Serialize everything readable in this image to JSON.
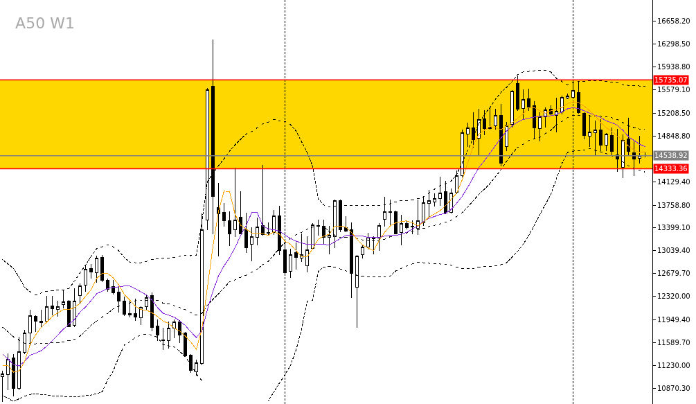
{
  "chart_data": {
    "type": "candlestick",
    "title": "A50 W1",
    "categories": [
      null,
      null,
      null,
      null,
      null,
      null,
      null,
      null,
      null,
      null,
      null,
      null,
      null,
      null,
      null,
      null,
      null,
      null,
      null,
      null,
      null,
      null,
      null,
      null,
      null,
      null,
      null,
      null,
      null,
      null,
      null,
      null,
      null,
      null,
      null,
      null,
      null,
      null,
      null,
      null,
      null,
      null,
      null,
      null,
      null,
      null,
      null,
      null,
      null,
      null,
      null,
      null,
      null,
      null,
      null,
      null,
      null,
      null,
      null,
      null,
      null,
      null,
      null,
      null,
      null,
      null,
      null,
      null,
      null,
      null,
      null,
      null,
      null,
      null,
      null,
      null,
      null,
      null,
      null,
      null,
      null,
      null,
      null,
      null,
      null,
      null,
      null,
      null,
      null,
      null,
      null,
      null,
      null,
      null,
      null,
      null,
      null,
      null,
      null,
      null,
      null,
      null,
      null,
      null,
      null,
      null,
      null,
      null,
      null,
      null,
      null,
      null,
      null,
      null,
      null,
      null,
      null
    ],
    "ohlc": [
      [
        11046,
        11144,
        10652,
        11100
      ],
      [
        11079,
        11407,
        10838,
        11320
      ],
      [
        11352,
        11396,
        10750,
        10860
      ],
      [
        10860,
        11680,
        10838,
        11440
      ],
      [
        11429,
        11779,
        11410,
        11735
      ],
      [
        11735,
        12096,
        11560,
        12019
      ],
      [
        11998,
        12019,
        11757,
        11921
      ],
      [
        11921,
        12096,
        11823,
        11905
      ],
      [
        11921,
        12315,
        11910,
        12151
      ],
      [
        12162,
        12315,
        12030,
        12118
      ],
      [
        12107,
        12249,
        12008,
        12151
      ],
      [
        12184,
        12424,
        12129,
        12238
      ],
      [
        12249,
        12260,
        11844,
        11844
      ],
      [
        11866,
        12446,
        11844,
        12249
      ],
      [
        12326,
        12512,
        12205,
        12479
      ],
      [
        12490,
        12807,
        12402,
        12752
      ],
      [
        12763,
        12818,
        12610,
        12698
      ],
      [
        12687,
        12950,
        12534,
        12917
      ],
      [
        12928,
        12971,
        12545,
        12577
      ],
      [
        12577,
        12590,
        12402,
        12435
      ],
      [
        12468,
        12577,
        12358,
        12380
      ],
      [
        12391,
        12457,
        12074,
        12249
      ],
      [
        12249,
        12304,
        12019,
        12041
      ],
      [
        12052,
        12249,
        11987,
        12030
      ],
      [
        12052,
        12271,
        11932,
        11987
      ],
      [
        11976,
        12151,
        11877,
        12140
      ],
      [
        12151,
        12337,
        12107,
        12293
      ],
      [
        12326,
        12370,
        11768,
        11833
      ],
      [
        11855,
        11943,
        11615,
        11713
      ],
      [
        11626,
        11812,
        11483,
        11615
      ],
      [
        11615,
        11910,
        11505,
        11812
      ],
      [
        11812,
        11943,
        11669,
        11910
      ],
      [
        11910,
        11932,
        11582,
        11713
      ],
      [
        11735,
        11746,
        11363,
        11374
      ],
      [
        11385,
        11396,
        11122,
        11155
      ],
      [
        11133,
        11319,
        11068,
        11265
      ],
      [
        11254,
        13617,
        11232,
        13365
      ],
      [
        13529,
        15597,
        13365,
        15575
      ],
      [
        15630,
        16363,
        13310,
        13901
      ],
      [
        13726,
        14098,
        12950,
        13617
      ],
      [
        13639,
        13781,
        13420,
        13518
      ],
      [
        13518,
        13660,
        13114,
        13310
      ],
      [
        13365,
        14339,
        13256,
        13529
      ],
      [
        13562,
        13967,
        13300,
        13310
      ],
      [
        13365,
        13628,
        13004,
        13081
      ],
      [
        13146,
        13398,
        12873,
        13256
      ],
      [
        13245,
        13551,
        13135,
        13409
      ],
      [
        13431,
        14393,
        13288,
        13299
      ],
      [
        13332,
        13475,
        13299,
        13321
      ],
      [
        13332,
        13672,
        13299,
        13584
      ],
      [
        13584,
        13737,
        12982,
        13037
      ],
      [
        13048,
        13168,
        12654,
        12687
      ],
      [
        12709,
        13059,
        12621,
        12982
      ],
      [
        13004,
        13168,
        12752,
        12928
      ],
      [
        12917,
        13310,
        12862,
        12982
      ],
      [
        12807,
        13256,
        12698,
        13048
      ],
      [
        13070,
        13464,
        13059,
        13442
      ],
      [
        13431,
        13529,
        13288,
        13425
      ],
      [
        13420,
        13529,
        13146,
        13245
      ],
      [
        13245,
        13420,
        12993,
        13288
      ],
      [
        13256,
        13836,
        13081,
        13825
      ],
      [
        13825,
        13836,
        13343,
        13365
      ],
      [
        13398,
        13573,
        13343,
        13354
      ],
      [
        13365,
        13475,
        12293,
        12676
      ],
      [
        12457,
        12961,
        11823,
        12950
      ],
      [
        12982,
        13124,
        12917,
        13092
      ],
      [
        13092,
        13321,
        13059,
        13245
      ],
      [
        13234,
        13256,
        12993,
        13230
      ],
      [
        13234,
        13464,
        13037,
        13431
      ],
      [
        13540,
        13880,
        13420,
        13650
      ],
      [
        13650,
        13836,
        13442,
        13639
      ],
      [
        13660,
        13665,
        13305,
        13310
      ],
      [
        13332,
        13595,
        13135,
        13464
      ],
      [
        13464,
        13497,
        13376,
        13398
      ],
      [
        13420,
        13508,
        13310,
        13409
      ],
      [
        13387,
        13836,
        13299,
        13508
      ],
      [
        13475,
        13901,
        13431,
        13792
      ],
      [
        13781,
        13989,
        13573,
        13825
      ],
      [
        13803,
        13934,
        13737,
        13858
      ],
      [
        13868,
        14207,
        13748,
        13945
      ],
      [
        13967,
        14131,
        13617,
        13628
      ],
      [
        13639,
        14011,
        13628,
        13945
      ],
      [
        13956,
        14295,
        13934,
        14229
      ],
      [
        14229,
        14951,
        14197,
        14897
      ],
      [
        14875,
        15050,
        14678,
        14984
      ],
      [
        14984,
        15214,
        14667,
        14798
      ],
      [
        14820,
        15269,
        14557,
        15105
      ],
      [
        15116,
        15247,
        14864,
        14973
      ],
      [
        14995,
        15301,
        14962,
        14973
      ],
      [
        15006,
        15279,
        14962,
        15181
      ],
      [
        15181,
        15356,
        14372,
        14426
      ],
      [
        14678,
        15061,
        14623,
        15006
      ],
      [
        15028,
        15564,
        14995,
        15553
      ],
      [
        15674,
        15794,
        15247,
        15279
      ],
      [
        15290,
        15575,
        15105,
        15422
      ],
      [
        15433,
        15586,
        15247,
        15312
      ],
      [
        15334,
        15389,
        14809,
        14984
      ],
      [
        14973,
        15214,
        14776,
        15159
      ],
      [
        15159,
        15301,
        14995,
        15268
      ],
      [
        15279,
        15334,
        15181,
        15192
      ],
      [
        15181,
        15444,
        14918,
        15236
      ],
      [
        15225,
        15487,
        15192,
        15455
      ],
      [
        15444,
        15520,
        15433,
        15487
      ],
      [
        15455,
        15706,
        15444,
        15564
      ],
      [
        15542,
        15706,
        15203,
        15214
      ],
      [
        15203,
        15214,
        14809,
        14853
      ],
      [
        14842,
        15159,
        14678,
        14918
      ],
      [
        14907,
        15083,
        14557,
        14951
      ],
      [
        14951,
        15105,
        14623,
        14710
      ],
      [
        14710,
        14896,
        14623,
        14885
      ],
      [
        14853,
        14984,
        14557,
        14612
      ],
      [
        14547,
        14962,
        14284,
        14481
      ],
      [
        14350,
        14864,
        14186,
        14787
      ],
      [
        14809,
        15137,
        14557,
        14612
      ],
      [
        14590,
        14755,
        14229,
        14481
      ],
      [
        14492,
        14842,
        14426,
        14536
      ],
      [
        14541,
        14580,
        14514,
        14538.92
      ]
    ],
    "colors": [
      "#ffffff",
      "#ffffff",
      "#000000",
      "#ffffff",
      "#ffffff",
      "#ffffff",
      "#000000",
      "#000000",
      "#ffffff",
      "#000000",
      "#ffffff",
      "#ffffff",
      "#000000",
      "#ffffff",
      "#ffffff",
      "#ffffff",
      "#000000",
      "#ffffff",
      "#000000",
      "#000000",
      "#000000",
      "#000000",
      "#000000",
      "#000000",
      "#000000",
      "#ffffff",
      "#ffffff",
      "#000000",
      "#000000",
      "#000000",
      "#ffffff",
      "#ffffff",
      "#000000",
      "#000000",
      "#000000",
      "#ffffff",
      "#ffffff",
      "#ffffff",
      "#000000",
      "#000000",
      "#000000",
      "#000000",
      "#ffffff",
      "#000000",
      "#000000",
      "#ffffff",
      "#ffffff",
      "#000000",
      "#000000",
      "#ffffff",
      "#000000",
      "#000000",
      "#ffffff",
      "#000000",
      "#ffffff",
      "#ffffff",
      "#ffffff",
      "#000000",
      "#000000",
      "#ffffff",
      "#ffffff",
      "#000000",
      "#000000",
      "#000000",
      "#ffffff",
      "#ffffff",
      "#ffffff",
      "#000000",
      "#ffffff",
      "#ffffff",
      "#000000",
      "#000000",
      "#ffffff",
      "#000000",
      "#000000",
      "#ffffff",
      "#ffffff",
      "#ffffff",
      "#ffffff",
      "#ffffff",
      "#000000",
      "#ffffff",
      "#ffffff",
      "#ffffff",
      "#ffffff",
      "#000000",
      "#ffffff",
      "#000000",
      "#000000",
      "#ffffff",
      "#000000",
      "#ffffff",
      "#ffffff",
      "#000000",
      "#ffffff",
      "#000000",
      "#000000",
      "#ffffff",
      "#ffffff",
      "#000000",
      "#ffffff",
      "#ffffff",
      "#ffffff",
      "#ffffff",
      "#000000",
      "#000000",
      "#ffffff",
      "#ffffff",
      "#000000",
      "#ffffff",
      "#000000",
      "#000000",
      "#ffffff",
      "#000000",
      "#000000",
      "#ffffff",
      "#000000"
    ],
    "series": [
      {
        "type": "line",
        "color": "#000000",
        "line_style": "dashed",
        "values": [
          12900,
          12830,
          12760,
          12620,
          12460,
          12390,
          12340,
          12370,
          12400,
          12410,
          12420,
          12420,
          12440,
          12560,
          12690,
          12810,
          12950,
          13070,
          13100,
          13130,
          13100,
          13040,
          12930,
          12860,
          12850,
          12850,
          12870,
          12900,
          12910,
          12920,
          12920,
          12930,
          12950,
          12970,
          12960,
          12970,
          13500,
          14130,
          14260,
          14380,
          14490,
          14610,
          14710,
          14800,
          14880,
          14920,
          14980,
          15040,
          15070,
          15110,
          15090,
          15080,
          15030,
          14930,
          14760,
          14590,
          14370,
          13860,
          13760,
          13730,
          13740,
          13750,
          13750,
          13750,
          13750,
          13750,
          13750,
          13750,
          13750,
          13760,
          13780,
          13810,
          13830,
          13830,
          13840,
          13860,
          13890,
          13950,
          14010,
          14070,
          14100,
          14140,
          14240,
          14430,
          14620,
          14830,
          15050,
          15190,
          15300,
          15430,
          15540,
          15620,
          15710,
          15820,
          15860,
          15870,
          15880,
          15890,
          15890,
          15860,
          15760,
          15710,
          15660,
          15690,
          15710,
          15710,
          15720,
          15720,
          15720,
          15710,
          15700,
          15690,
          15660,
          15650,
          15650,
          15640,
          15640
        ]
      },
      {
        "type": "line",
        "color": "#000000",
        "line_style": "dashed",
        "values": [
          11830,
          11760,
          11680,
          11630,
          11580,
          11570,
          11570,
          11580,
          11580,
          11590,
          11590,
          11600,
          11620,
          11640,
          11690,
          11770,
          11860,
          11930,
          11990,
          12050,
          12120,
          12160,
          12180,
          12220,
          12250,
          12260,
          12260,
          12260,
          12260,
          12210,
          12200,
          12170,
          12140,
          12110,
          12060,
          12020,
          12050,
          12180,
          12270,
          12360,
          12450,
          12550,
          12580,
          12620,
          12650,
          12700,
          12750,
          12820,
          12870,
          12970,
          13080,
          13170,
          13230,
          13290,
          13330,
          13380,
          13410,
          13430,
          13420,
          13340,
          13280,
          13250,
          13250,
          13260,
          13230,
          13210,
          13200,
          13200,
          13200,
          13220,
          13260,
          13280,
          13300,
          13320,
          13340,
          13370,
          13390,
          13420,
          13440,
          13460,
          13490,
          13520,
          13580,
          13640,
          13730,
          13830,
          13930,
          14010,
          14100,
          14210,
          14320,
          14450,
          14570,
          14670,
          14720,
          14780,
          14810,
          14830,
          14890,
          14940,
          15030,
          15080,
          15140,
          15180,
          15180,
          15180,
          15170,
          15170,
          15160,
          15150,
          15140,
          15110,
          15060,
          15010,
          14980,
          14960,
          14950
        ]
      },
      {
        "type": "line",
        "color": "#000000",
        "line_style": "dashed",
        "values": [
          10750,
          10710,
          10660,
          10700,
          10740,
          10770,
          10780,
          10770,
          10760,
          10750,
          10740,
          10740,
          10730,
          10730,
          10740,
          10750,
          10760,
          10780,
          10810,
          11000,
          11140,
          11360,
          11550,
          11600,
          11670,
          11710,
          11720,
          11710,
          11670,
          11560,
          11540,
          11520,
          11450,
          11360,
          11250,
          11090,
          10990,
          null,
          null,
          null,
          null,
          null,
          null,
          null,
          null,
          null,
          null,
          null,
          10670,
          10810,
          10950,
          11080,
          11230,
          11470,
          11800,
          12240,
          12260,
          12710,
          12780,
          12790,
          12780,
          12750,
          12720,
          12680,
          12650,
          12640,
          12630,
          12630,
          12630,
          12630,
          12640,
          12720,
          12760,
          12800,
          12830,
          12860,
          12850,
          12840,
          12830,
          12830,
          12820,
          12810,
          12780,
          12760,
          12760,
          12760,
          12780,
          12790,
          12790,
          12800,
          12820,
          12850,
          12940,
          13030,
          13140,
          13280,
          13440,
          13610,
          13770,
          13930,
          14180,
          14420,
          14590,
          14610,
          14620,
          14630,
          14650,
          14620,
          14600,
          14570,
          14540,
          14490,
          14440,
          14380,
          14340,
          14310,
          14280
        ]
      },
      {
        "type": "line",
        "color": "#8a2be2",
        "line_style": "solid",
        "values": [
          11410,
          11330,
          11240,
          11220,
          11290,
          11390,
          11420,
          11460,
          11530,
          11620,
          11710,
          11800,
          11880,
          11950,
          12070,
          12150,
          12250,
          12360,
          12400,
          12440,
          12460,
          12470,
          12480,
          12480,
          12440,
          12390,
          12340,
          12260,
          12140,
          12050,
          12020,
          11990,
          11930,
          11860,
          11760,
          11670,
          11770,
          12110,
          12400,
          12640,
          12800,
          12930,
          13090,
          13280,
          13440,
          13640,
          13640,
          13430,
          13380,
          13370,
          13350,
          13290,
          13230,
          13190,
          13160,
          13140,
          13140,
          13140,
          13140,
          13130,
          13180,
          13230,
          13280,
          13280,
          13270,
          13270,
          13250,
          13250,
          13250,
          13270,
          13280,
          13280,
          13300,
          13330,
          13380,
          13430,
          13500,
          13550,
          13580,
          13610,
          13630,
          13690,
          13790,
          13900,
          14040,
          14200,
          14350,
          14460,
          14580,
          14700,
          14820,
          14930,
          15010,
          15070,
          15110,
          15130,
          15150,
          15160,
          15160,
          15170,
          15190,
          15230,
          15280,
          15300,
          15280,
          15250,
          15210,
          15180,
          15140,
          15090,
          15060,
          15020,
          14940,
          14840,
          14780,
          14720,
          14680
        ]
      },
      {
        "type": "line",
        "color": "#ffa500",
        "line_style": "solid",
        "values": [
          11220,
          11230,
          11120,
          11140,
          11290,
          11560,
          11710,
          11830,
          11910,
          12000,
          12060,
          12110,
          12110,
          12140,
          12210,
          12320,
          12420,
          12600,
          12680,
          12680,
          12610,
          12500,
          12350,
          12260,
          12160,
          12110,
          12100,
          12060,
          12000,
          11930,
          11890,
          11820,
          11770,
          11690,
          11600,
          11480,
          11800,
          12460,
          13110,
          13660,
          13980,
          13970,
          13610,
          13440,
          13380,
          13320,
          13320,
          13310,
          13280,
          13340,
          13300,
          13190,
          13140,
          13040,
          12940,
          12940,
          13070,
          13220,
          13270,
          13300,
          13430,
          13430,
          13410,
          13330,
          13220,
          13130,
          13080,
          13040,
          13200,
          13330,
          13430,
          13480,
          13500,
          13510,
          13480,
          13430,
          13490,
          13570,
          13620,
          13670,
          13750,
          13850,
          13950,
          14160,
          14430,
          14700,
          14880,
          14940,
          15000,
          14980,
          14950,
          15010,
          15060,
          15130,
          15200,
          15300,
          15300,
          15250,
          15210,
          15250,
          15270,
          15300,
          15360,
          15390,
          15380,
          15320,
          15250,
          15170,
          15060,
          14980,
          14920,
          14850,
          14780,
          14690,
          14630,
          14590,
          14600
        ]
      }
    ],
    "ylim": [
      10619,
      16997
    ],
    "yticks": [
      {
        "value": 16658.2,
        "label": "16658.20"
      },
      {
        "value": 16298.5,
        "label": "16298.50"
      },
      {
        "value": 15938.8,
        "label": "15938.80"
      },
      {
        "value": 15579.1,
        "label": "15579.10"
      },
      {
        "value": 15208.5,
        "label": "15208.50"
      },
      {
        "value": 14848.8,
        "label": "14848.80"
      },
      {
        "value": 14129.4,
        "label": "14129.40"
      },
      {
        "value": 13758.8,
        "label": "13758.80"
      },
      {
        "value": 13399.1,
        "label": "13399.10"
      },
      {
        "value": 13039.4,
        "label": "13039.40"
      },
      {
        "value": 12679.7,
        "label": "12679.70"
      },
      {
        "value": 12320,
        "label": "12320.00"
      },
      {
        "value": 11949.4,
        "label": "11949.40"
      },
      {
        "value": 11589.7,
        "label": "11589.70"
      },
      {
        "value": 11230,
        "label": "11230.00"
      },
      {
        "value": 10870.3,
        "label": "10870.30"
      }
    ],
    "ref_lines": [
      {
        "axis": "y",
        "value": 15735.07,
        "label": "15735.07",
        "color": "#ff0000"
      },
      {
        "axis": "y",
        "value": 14538.92,
        "label": "14538.92",
        "color": "#808080"
      },
      {
        "axis": "y",
        "value": 14333.36,
        "label": "14333.36",
        "color": "#ff0000"
      }
    ],
    "bands": [
      {
        "axis": "y",
        "from": 14333.36,
        "to": 15735.07,
        "color": "#ffd700"
      }
    ],
    "tick_labels": "y"
  }
}
